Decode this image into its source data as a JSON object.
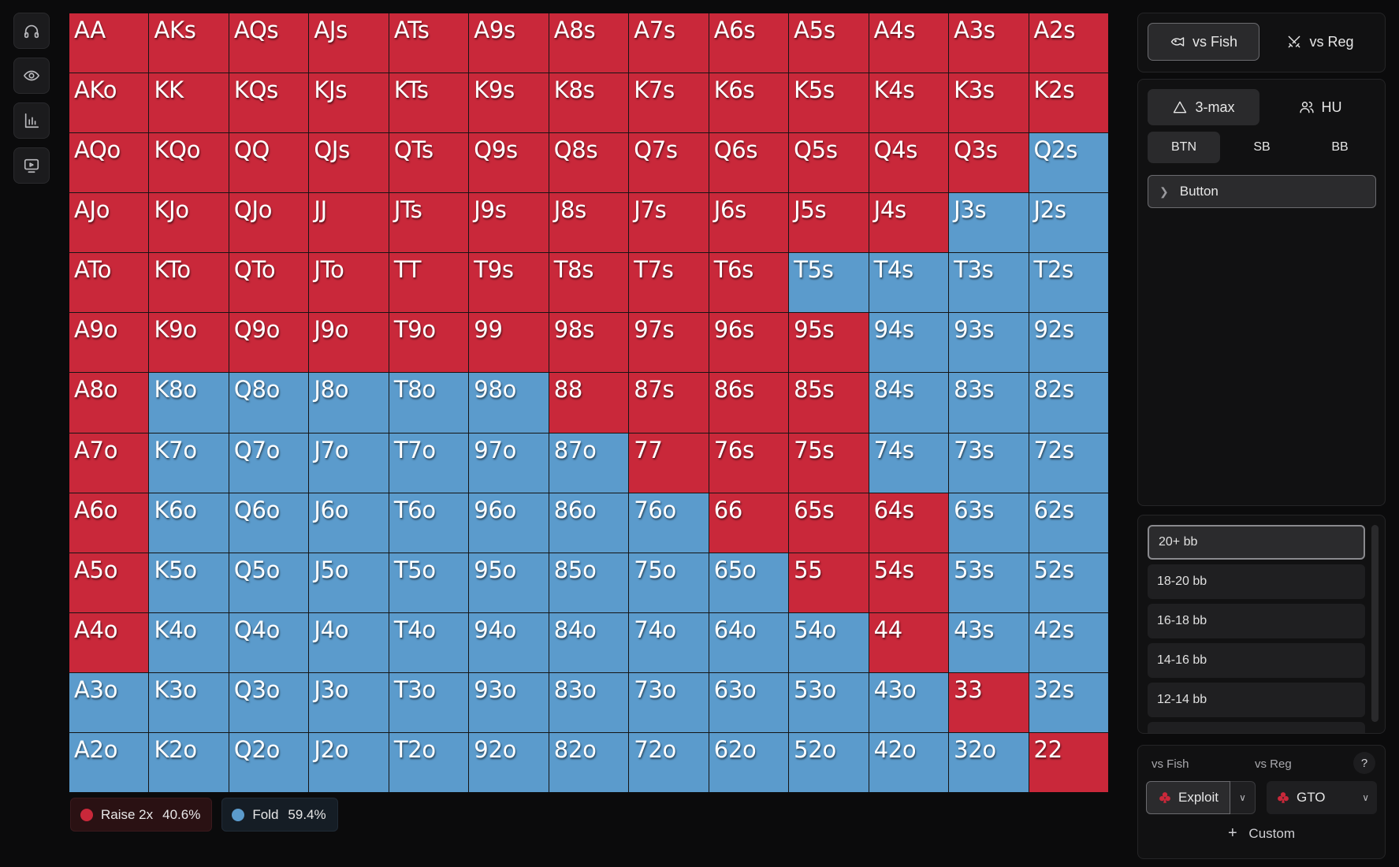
{
  "sidebar_icons": [
    "headphones-icon",
    "eye-icon",
    "bar-chart-icon",
    "screen-icon"
  ],
  "range": {
    "hands": [
      [
        "AA",
        "AKs",
        "AQs",
        "AJs",
        "ATs",
        "A9s",
        "A8s",
        "A7s",
        "A6s",
        "A5s",
        "A4s",
        "A3s",
        "A2s"
      ],
      [
        "AKo",
        "KK",
        "KQs",
        "KJs",
        "KTs",
        "K9s",
        "K8s",
        "K7s",
        "K6s",
        "K5s",
        "K4s",
        "K3s",
        "K2s"
      ],
      [
        "AQo",
        "KQo",
        "QQ",
        "QJs",
        "QTs",
        "Q9s",
        "Q8s",
        "Q7s",
        "Q6s",
        "Q5s",
        "Q4s",
        "Q3s",
        "Q2s"
      ],
      [
        "AJo",
        "KJo",
        "QJo",
        "JJ",
        "JTs",
        "J9s",
        "J8s",
        "J7s",
        "J6s",
        "J5s",
        "J4s",
        "J3s",
        "J2s"
      ],
      [
        "ATo",
        "KTo",
        "QTo",
        "JTo",
        "TT",
        "T9s",
        "T8s",
        "T7s",
        "T6s",
        "T5s",
        "T4s",
        "T3s",
        "T2s"
      ],
      [
        "A9o",
        "K9o",
        "Q9o",
        "J9o",
        "T9o",
        "99",
        "98s",
        "97s",
        "96s",
        "95s",
        "94s",
        "93s",
        "92s"
      ],
      [
        "A8o",
        "K8o",
        "Q8o",
        "J8o",
        "T8o",
        "98o",
        "88",
        "87s",
        "86s",
        "85s",
        "84s",
        "83s",
        "82s"
      ],
      [
        "A7o",
        "K7o",
        "Q7o",
        "J7o",
        "T7o",
        "97o",
        "87o",
        "77",
        "76s",
        "75s",
        "74s",
        "73s",
        "72s"
      ],
      [
        "A6o",
        "K6o",
        "Q6o",
        "J6o",
        "T6o",
        "96o",
        "86o",
        "76o",
        "66",
        "65s",
        "64s",
        "63s",
        "62s"
      ],
      [
        "A5o",
        "K5o",
        "Q5o",
        "J5o",
        "T5o",
        "95o",
        "85o",
        "75o",
        "65o",
        "55",
        "54s",
        "53s",
        "52s"
      ],
      [
        "A4o",
        "K4o",
        "Q4o",
        "J4o",
        "T4o",
        "94o",
        "84o",
        "74o",
        "64o",
        "54o",
        "44",
        "43s",
        "42s"
      ],
      [
        "A3o",
        "K3o",
        "Q3o",
        "J3o",
        "T3o",
        "93o",
        "83o",
        "73o",
        "63o",
        "53o",
        "43o",
        "33",
        "32s"
      ],
      [
        "A2o",
        "K2o",
        "Q2o",
        "J2o",
        "T2o",
        "92o",
        "82o",
        "72o",
        "62o",
        "52o",
        "42o",
        "32o",
        "22"
      ]
    ],
    "actions": [
      "RRRRRRRRRRRRR",
      "RRRRRRRRRRRRR",
      "RRRRRRRRRRRRF",
      "RRRRRRRRRRRFF",
      "RRRRRRRRRFFFF",
      "RRRRRRRRRRFFF",
      "RFFFFFRRRRFFF",
      "RFFFFFFRRRFFF",
      "RFFFFFFFRRRFF",
      "RFFFFFFFFRRFF",
      "RFFFFFFFFFRFF",
      "FFFFFFFFFFFRF",
      "FFFFFFFFFFFFR"
    ]
  },
  "legend": {
    "raise": {
      "label": "Raise 2x",
      "pct": "40.6%",
      "color": "#c9283a"
    },
    "fold": {
      "label": "Fold",
      "pct": "59.4%",
      "color": "#5b9bcc"
    }
  },
  "opponent_tabs": {
    "fish": "vs Fish",
    "reg": "vs Reg"
  },
  "game_mode": {
    "three_max": "3-max",
    "hu": "HU"
  },
  "positions": {
    "btn": "BTN",
    "sb": "SB",
    "bb": "BB"
  },
  "position_selected": "Button",
  "stack_depths": [
    "20+ bb",
    "18-20 bb",
    "16-18 bb",
    "14-16 bb",
    "12-14 bb"
  ],
  "strategy": {
    "vs_fish_label": "vs Fish",
    "vs_reg_label": "vs Reg",
    "help": "?",
    "fish_strategy": "Exploit",
    "reg_strategy": "GTO",
    "custom": "Custom"
  }
}
